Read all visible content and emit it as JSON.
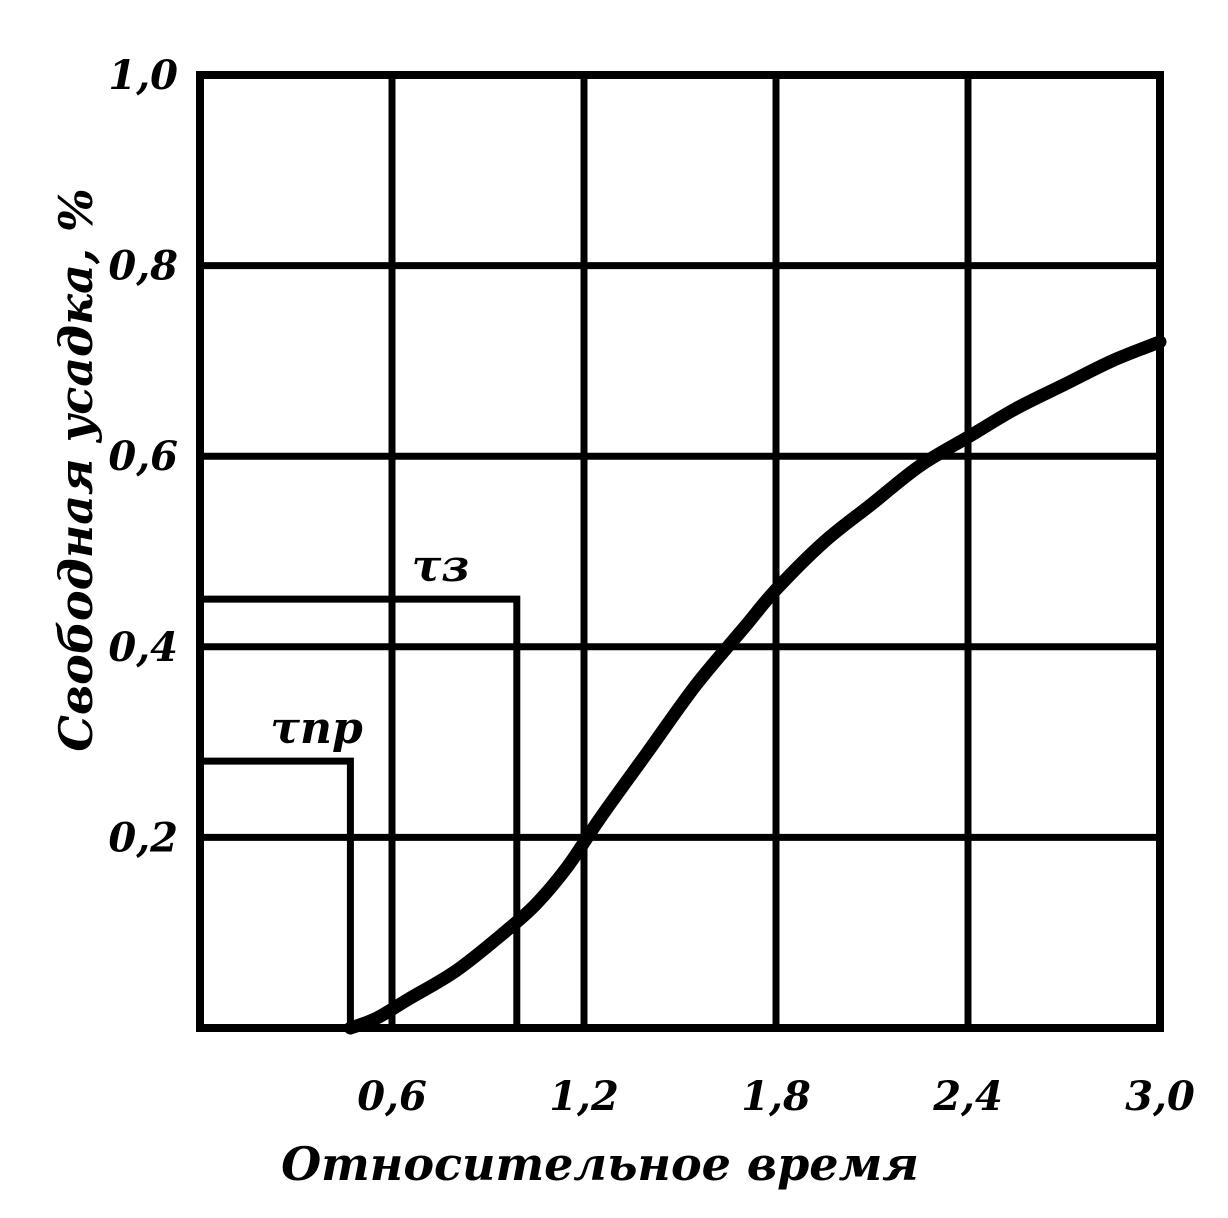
{
  "colors": {
    "ink": "#000000",
    "background": "#ffffff"
  },
  "chart_data": {
    "type": "line",
    "title": "",
    "xlabel": "Относительное время",
    "ylabel": "Свободная усадка, %",
    "xlim": [
      0,
      3.0
    ],
    "ylim": [
      0,
      1.0
    ],
    "x_ticks": [
      {
        "value": 0.6,
        "label": "0,6"
      },
      {
        "value": 1.2,
        "label": "1,2"
      },
      {
        "value": 1.8,
        "label": "1,8"
      },
      {
        "value": 2.4,
        "label": "2,4"
      },
      {
        "value": 3.0,
        "label": "3,0"
      }
    ],
    "y_ticks": [
      {
        "value": 0.2,
        "label": "0,2"
      },
      {
        "value": 0.4,
        "label": "0,4"
      },
      {
        "value": 0.6,
        "label": "0,6"
      },
      {
        "value": 0.8,
        "label": "0,8"
      },
      {
        "value": 1.0,
        "label": "1,0"
      }
    ],
    "grid": true,
    "series": [
      {
        "x": [
          0.47,
          0.55,
          0.65,
          0.8,
          0.95,
          1.05,
          1.15,
          1.25,
          1.4,
          1.55,
          1.7,
          1.8,
          1.95,
          2.1,
          2.25,
          2.4,
          2.55,
          2.7,
          2.85,
          3.0
        ],
        "y": [
          0.0,
          0.01,
          0.03,
          0.06,
          0.1,
          0.13,
          0.17,
          0.22,
          0.29,
          0.36,
          0.42,
          0.46,
          0.51,
          0.55,
          0.59,
          0.62,
          0.65,
          0.675,
          0.7,
          0.72
        ]
      }
    ],
    "markers": [
      {
        "label": "τз",
        "x": 0.99,
        "y": 0.45
      },
      {
        "label": "τпр",
        "x": 0.47,
        "y": 0.28
      }
    ]
  }
}
